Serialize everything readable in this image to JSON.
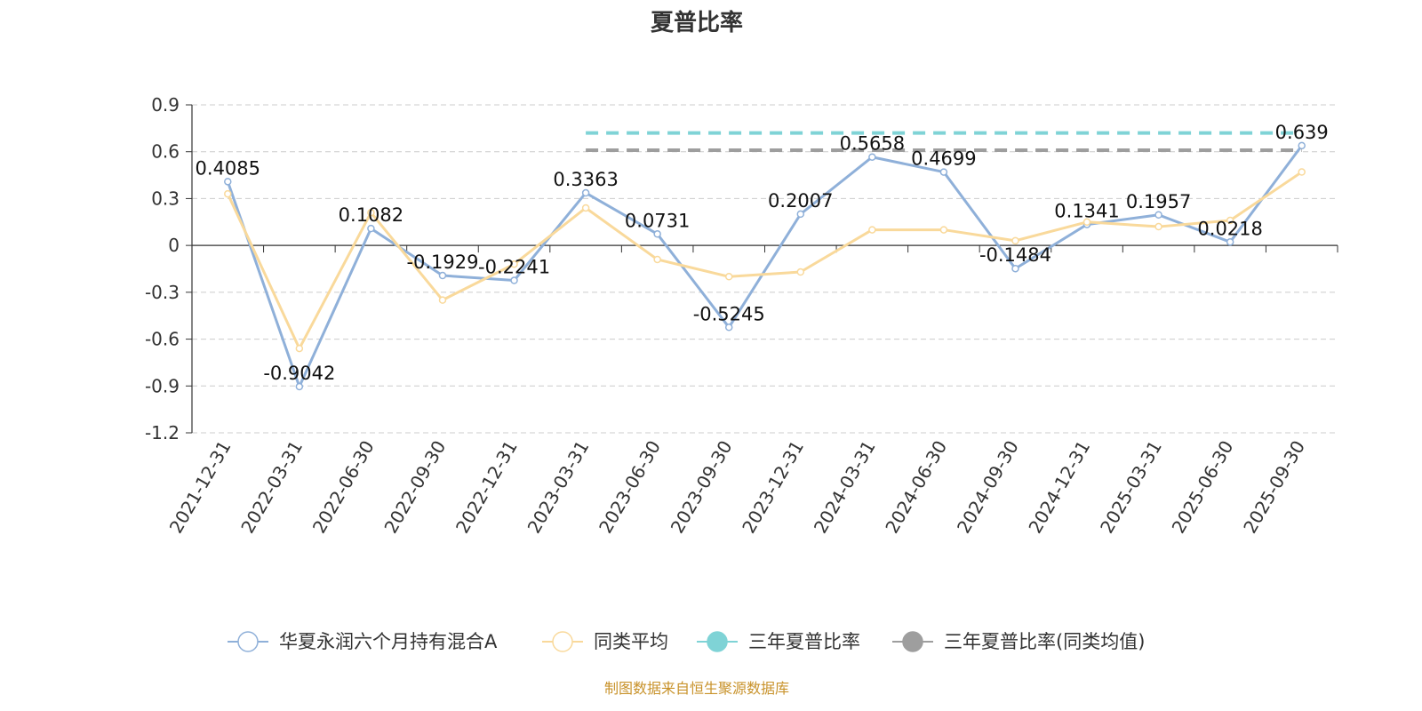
{
  "chart_data": {
    "type": "line",
    "title": "夏普比率",
    "categories": [
      "2021-12-31",
      "2022-03-31",
      "2022-06-30",
      "2022-09-30",
      "2022-12-31",
      "2023-03-31",
      "2023-06-30",
      "2023-09-30",
      "2023-12-31",
      "2024-03-31",
      "2024-06-30",
      "2024-09-30",
      "2024-12-31",
      "2025-03-31",
      "2025-06-30",
      "2025-09-30"
    ],
    "ylim": [
      -1.2,
      0.9
    ],
    "yticks": [
      "0.9",
      "0.6",
      "0.3",
      "0",
      "-0.3",
      "-0.6",
      "-0.9",
      "-1.2"
    ],
    "grid": true,
    "legend_position": "bottom",
    "series": [
      {
        "name": "华夏永润六个月持有混合A",
        "color": "#8fb0d9",
        "values": [
          0.4085,
          -0.9042,
          0.1082,
          -0.1929,
          -0.2241,
          0.3363,
          0.0731,
          -0.5245,
          0.2007,
          0.5658,
          0.4699,
          -0.1484,
          0.1341,
          0.1957,
          0.0218,
          0.639
        ],
        "labels": [
          "0.4085",
          "-0.9042",
          "0.1082",
          "-0.1929",
          "-0.2241",
          "0.3363",
          "0.0731",
          "-0.5245",
          "0.2007",
          "0.5658",
          "0.4699",
          "-0.1484",
          "0.1341",
          "0.1957",
          "0.0218",
          "0.639"
        ]
      },
      {
        "name": "同类平均",
        "color": "#f9d99b",
        "values": [
          0.33,
          -0.66,
          0.21,
          -0.35,
          -0.12,
          0.24,
          -0.09,
          -0.2,
          -0.17,
          0.1,
          0.1,
          0.03,
          0.15,
          0.12,
          0.16,
          0.47
        ]
      },
      {
        "name": "三年夏普比率",
        "color": "#7fd3d6",
        "dashed": true,
        "from": "2023-03-31",
        "to": "2025-09-30",
        "value": 0.72
      },
      {
        "name": "三年夏普比率(同类均值)",
        "color": "#9e9e9e",
        "dashed": true,
        "from": "2023-03-31",
        "to": "2025-09-30",
        "value": 0.61
      }
    ],
    "source": "制图数据来自恒生聚源数据库"
  }
}
